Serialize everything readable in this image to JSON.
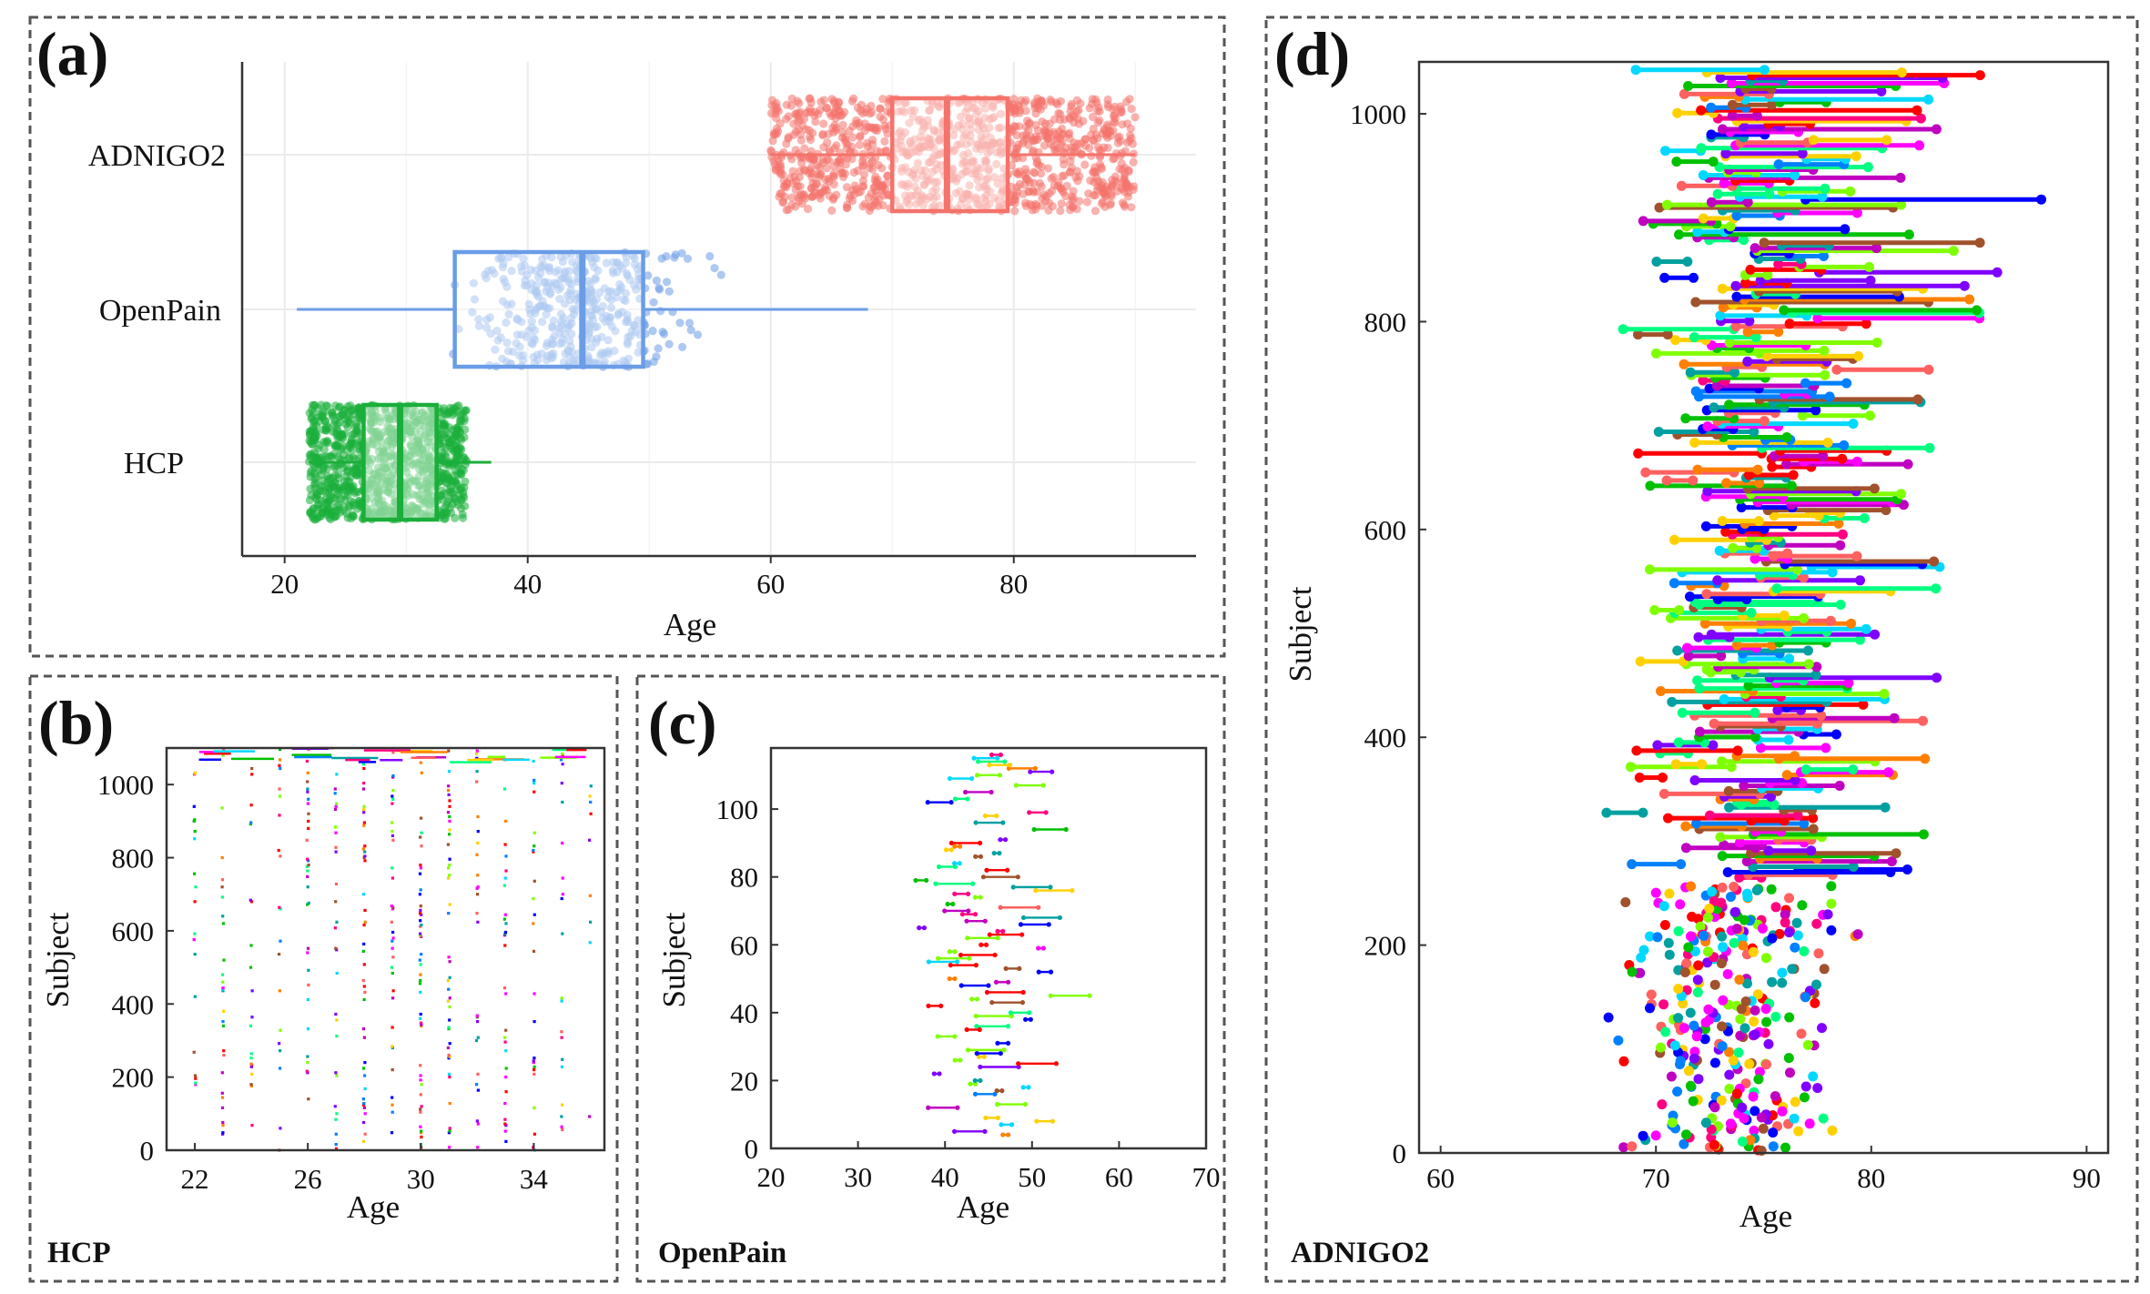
{
  "chart_data": [
    {
      "panel": "(a)",
      "type": "box",
      "xlabel": "Age",
      "ylabel": "",
      "xlim": [
        16.5,
        95
      ],
      "xticks": [
        "20",
        "40",
        "60",
        "80"
      ],
      "categories": [
        "ADNIGO2",
        "OpenPain",
        "HCP"
      ],
      "colors": [
        "#f4736b",
        "#6b9ce6",
        "#1aae3a"
      ],
      "series": [
        {
          "name": "ADNIGO2",
          "min": 60,
          "q1": 70,
          "median": 74.5,
          "q3": 79.5,
          "max": 90
        },
        {
          "name": "OpenPain",
          "min": 21,
          "q1": 34,
          "median": 44.5,
          "q3": 49.5,
          "max": 68
        },
        {
          "name": "HCP",
          "min": 22,
          "q1": 26.5,
          "median": 29.5,
          "q3": 32.5,
          "max": 37
        }
      ],
      "grid": true
    },
    {
      "panel": "(b)",
      "type": "scatter",
      "dataset": "HCP",
      "xlabel": "Age",
      "ylabel": "Subject",
      "xlim": [
        21,
        36.5
      ],
      "ylim": [
        0,
        1100
      ],
      "xticks": [
        "22",
        "26",
        "30",
        "34"
      ],
      "yticks": [
        "0",
        "200",
        "400",
        "600",
        "800",
        "1000"
      ],
      "ages": [
        22,
        23,
        24,
        25,
        26,
        27,
        28,
        29,
        30,
        31,
        32,
        33,
        34,
        35,
        36
      ],
      "subjects": 1100
    },
    {
      "panel": "(c)",
      "type": "line",
      "dataset": "OpenPain",
      "xlabel": "Age",
      "ylabel": "Subject",
      "xlim": [
        20,
        70
      ],
      "ylim": [
        0,
        118
      ],
      "xticks": [
        "20",
        "30",
        "40",
        "50",
        "60",
        "70"
      ],
      "yticks": [
        "0",
        "20",
        "40",
        "60",
        "80",
        "100"
      ],
      "subjects": 116
    },
    {
      "panel": "(d)",
      "type": "line",
      "dataset": "ADNIGO2",
      "xlabel": "Age",
      "ylabel": "Subject",
      "xlim": [
        59,
        91
      ],
      "ylim": [
        0,
        1050
      ],
      "xticks": [
        "60",
        "70",
        "80",
        "90"
      ],
      "yticks": [
        "0",
        "200",
        "400",
        "600",
        "800",
        "1000"
      ],
      "subjects": 1050
    }
  ],
  "palette": [
    "#ff0000",
    "#00c000",
    "#0000ff",
    "#ff00ff",
    "#00d8ff",
    "#ffd000",
    "#ff8000",
    "#8000ff",
    "#00ff80",
    "#ff0080",
    "#80ff00",
    "#0080ff",
    "#a0522d",
    "#00a0a0",
    "#c000c0",
    "#ff6060"
  ]
}
